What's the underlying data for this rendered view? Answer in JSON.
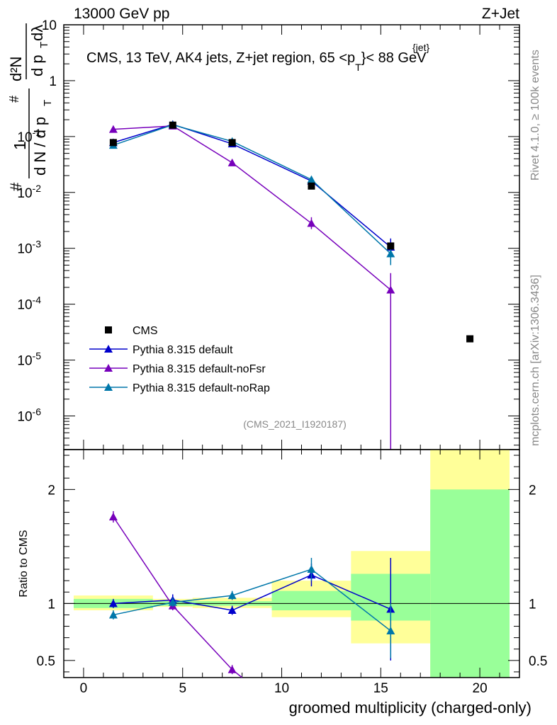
{
  "header": {
    "left": "13000 GeV pp",
    "right": "Z+Jet"
  },
  "side_texts": {
    "rivet": "Rivet 4.1.0, ≥ 100k events",
    "mcplots": "mcplots.cern.ch [arXiv:1306.3436]"
  },
  "analysis_tag": "(CMS_2021_I1920187)",
  "chart_data": [
    {
      "type": "scatter",
      "title": "CMS, 13 TeV, AK4 jets, Z+jet region, 65 < p_T^{jet} < 88 GeV",
      "title_parts": {
        "main": "CMS, 13 TeV, AK4 jets, Z+jet region, 65 <p",
        "sup": "{jet}",
        "sub": "T",
        "tail": "}< 88 GeV"
      },
      "ylabel_parts": {
        "num": "1",
        "frac": "d N / d p",
        "frac_sub": "T",
        "dd": "d²N",
        "dp": "d p",
        "dp_sub": "T",
        "dlambda": "dλ",
        "hash": "#"
      },
      "yscale": "log",
      "ylim": [
        2.5e-07,
        10
      ],
      "xlim": [
        -1,
        22
      ],
      "ytick_labels": [
        {
          "base": "10",
          "exp": "",
          "value": 10
        },
        {
          "base": "1",
          "exp": "",
          "value": 1
        },
        {
          "base": "10",
          "exp": "-1",
          "value": 0.1
        },
        {
          "base": "10",
          "exp": "-2",
          "value": 0.01
        },
        {
          "base": "10",
          "exp": "-3",
          "value": 0.001
        },
        {
          "base": "10",
          "exp": "-4",
          "value": 0.0001
        },
        {
          "base": "10",
          "exp": "-5",
          "value": 1e-05
        },
        {
          "base": "10",
          "exp": "-6",
          "value": 1e-06
        }
      ],
      "legend_position": "bottom-left",
      "legend": [
        {
          "name": "CMS",
          "marker": "square",
          "color": "#000000"
        },
        {
          "name": "Pythia 8.315 default",
          "marker": "triangle",
          "color": "#0000cc"
        },
        {
          "name": "Pythia 8.315 default-noFsr",
          "marker": "triangle",
          "color": "#7700bb"
        },
        {
          "name": "Pythia 8.315 default-noRap",
          "marker": "triangle",
          "color": "#0077aa"
        }
      ],
      "data": {
        "name": "CMS",
        "x": [
          1.5,
          4.5,
          7.5,
          11.5,
          15.5,
          19.5
        ],
        "xerr": [
          2,
          1,
          2,
          2,
          2,
          2
        ],
        "y": [
          0.078,
          0.16,
          0.078,
          0.013,
          0.0011,
          2.4e-05
        ]
      },
      "series": [
        {
          "name": "Pythia 8.315 default",
          "color": "#0000cc",
          "x": [
            1.5,
            4.5,
            7.5,
            11.5,
            15.5
          ],
          "y": [
            0.078,
            0.165,
            0.074,
            0.016,
            0.00105
          ],
          "yerr_up": [
            0.004,
            0.006,
            0.004,
            0.0015,
            0.00045
          ],
          "yerr_down": [
            0.004,
            0.006,
            0.004,
            0.0015,
            0.00035
          ]
        },
        {
          "name": "Pythia 8.315 default-noFsr",
          "color": "#7700bb",
          "x": [
            1.5,
            4.5,
            7.5,
            11.5,
            15.5
          ],
          "y": [
            0.135,
            0.155,
            0.034,
            0.0028,
            0.00018
          ],
          "yerr_up": [
            0.005,
            0.006,
            0.002,
            0.0008,
            0.00018
          ],
          "yerr_down": [
            0.005,
            0.006,
            0.002,
            0.0006,
            0.00018
          ]
        },
        {
          "name": "Pythia 8.315 default-noRap",
          "color": "#0077aa",
          "x": [
            1.5,
            4.5,
            7.5,
            11.5,
            15.5
          ],
          "y": [
            0.07,
            0.162,
            0.082,
            0.017,
            0.0008
          ],
          "yerr_up": [
            0.004,
            0.006,
            0.004,
            0.0016,
            0.0004
          ],
          "yerr_down": [
            0.004,
            0.006,
            0.004,
            0.0016,
            0.0003
          ]
        }
      ]
    },
    {
      "type": "scatter",
      "ylabel": "Ratio to CMS",
      "xlabel": "groomed multiplicity (charged-only)",
      "ylim": [
        0.35,
        2.35
      ],
      "xlim": [
        -1,
        22
      ],
      "reference_line": 1,
      "xtick_labels": [
        "0",
        "5",
        "10",
        "15",
        "20"
      ],
      "xtick_values": [
        0,
        5,
        10,
        15,
        20
      ],
      "ytick_labels": [
        "2",
        "1",
        "0.5"
      ],
      "ytick_values": [
        2,
        1,
        0.5
      ],
      "bands": [
        {
          "x0": -0.5,
          "x1": 3.5,
          "yellow": [
            0.94,
            1.07
          ],
          "green": [
            0.96,
            1.04
          ]
        },
        {
          "x0": 3.5,
          "x1": 5.5,
          "yellow": [
            0.97,
            1.04
          ],
          "green": [
            0.98,
            1.02
          ]
        },
        {
          "x0": 5.5,
          "x1": 9.5,
          "yellow": [
            0.96,
            1.05
          ],
          "green": [
            0.98,
            1.02
          ]
        },
        {
          "x0": 9.5,
          "x1": 13.5,
          "yellow": [
            0.88,
            1.2
          ],
          "green": [
            0.94,
            1.11
          ]
        },
        {
          "x0": 13.5,
          "x1": 17.5,
          "yellow": [
            0.65,
            1.46
          ],
          "green": [
            0.85,
            1.26
          ]
        },
        {
          "x0": 17.5,
          "x1": 21.5,
          "yellow": [
            0.35,
            2.35
          ],
          "green": [
            0.35,
            2.0
          ]
        }
      ],
      "series": [
        {
          "name": "Pythia 8.315 default",
          "color": "#0000cc",
          "x": [
            1.5,
            4.5,
            7.5,
            11.5,
            15.5
          ],
          "y": [
            1.0,
            1.03,
            0.94,
            1.25,
            0.95
          ],
          "err": [
            0.04,
            0.05,
            0.04,
            0.1,
            0.45
          ]
        },
        {
          "name": "Pythia 8.315 default-noFsr",
          "color": "#7700bb",
          "x": [
            1.5,
            4.5,
            7.5,
            8.0
          ],
          "y": [
            1.76,
            0.98,
            0.42,
            0.35
          ],
          "err": [
            0.05,
            0.04,
            0.04,
            0
          ]
        },
        {
          "name": "Pythia 8.315 default-noRap",
          "color": "#0077aa",
          "x": [
            1.5,
            4.5,
            7.5,
            11.5,
            15.5
          ],
          "y": [
            0.9,
            1.01,
            1.07,
            1.3,
            0.76
          ],
          "err": [
            0.04,
            0.04,
            0.04,
            0.1,
            0.24
          ]
        }
      ]
    }
  ]
}
